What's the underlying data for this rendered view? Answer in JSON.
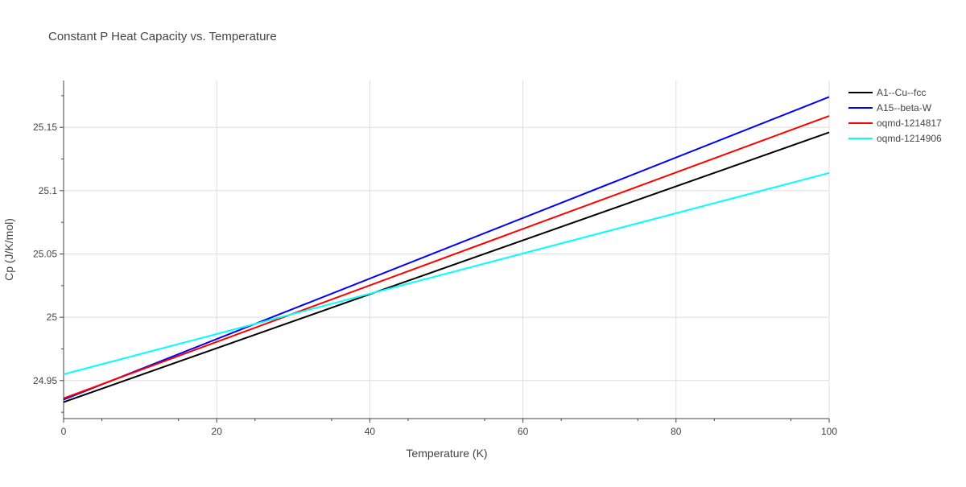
{
  "chart_data": {
    "type": "line",
    "title": "Constant P Heat Capacity vs. Temperature",
    "xlabel": "Temperature (K)",
    "ylabel": "Cp (J/K/mol)",
    "xlim": [
      0,
      100
    ],
    "ylim": [
      24.92,
      25.187
    ],
    "xticks": [
      0,
      20,
      40,
      60,
      80,
      100
    ],
    "xtick_labels": [
      "0",
      "20",
      "40",
      "60",
      "80",
      "100"
    ],
    "yticks": [
      24.95,
      25.0,
      25.05,
      25.1,
      25.15
    ],
    "ytick_labels": [
      "24.95",
      "25",
      "25.05",
      "25.1",
      "25.15"
    ],
    "grid": true,
    "legend_position": "top-right",
    "series": [
      {
        "name": "A1--Cu--fcc",
        "color": "#000000",
        "x": [
          0,
          100
        ],
        "y": [
          24.933,
          25.146
        ]
      },
      {
        "name": "A15--beta-W",
        "color": "#0000ff",
        "x": [
          0,
          100
        ],
        "y": [
          24.935,
          25.174
        ]
      },
      {
        "name": "oqmd-1214817",
        "color": "#ff0000",
        "x": [
          0,
          100
        ],
        "y": [
          24.936,
          25.159
        ]
      },
      {
        "name": "oqmd-1214906",
        "color": "#00ffff",
        "x": [
          0,
          100
        ],
        "y": [
          24.955,
          25.114
        ]
      }
    ]
  }
}
